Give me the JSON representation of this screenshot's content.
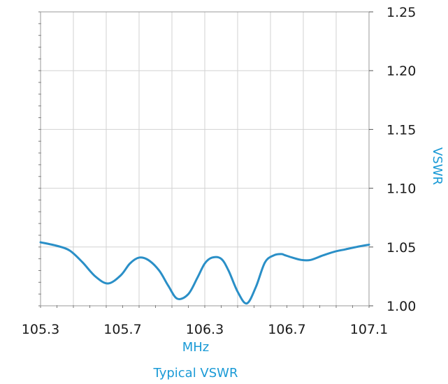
{
  "chart_data": {
    "type": "line",
    "title": "Typical VSWR",
    "xlabel": "MHz",
    "ylabel": "VSWR",
    "xlim": [
      105.3,
      107.1
    ],
    "ylim": [
      1.0,
      1.25
    ],
    "x_ticks": [
      "105.3",
      "105.7",
      "106.3",
      "106.7",
      "107.1"
    ],
    "y_ticks": [
      "1.00",
      "1.05",
      "1.10",
      "1.15",
      "1.20",
      "1.25"
    ],
    "grid": true,
    "y_axis_position": "right",
    "series": [
      {
        "color": "#2a8fc7",
        "x": [
          105.3,
          105.39,
          105.46,
          105.53,
          105.6,
          105.67,
          105.74,
          105.79,
          105.84,
          105.89,
          105.95,
          106.0,
          106.05,
          106.11,
          106.16,
          106.2,
          106.24,
          106.29,
          106.33,
          106.38,
          106.43,
          106.48,
          106.53,
          106.58,
          106.62,
          106.64,
          106.68,
          106.73,
          106.78,
          106.85,
          106.91,
          106.97,
          107.03,
          107.1
        ],
        "y": [
          1.054,
          1.051,
          1.047,
          1.037,
          1.025,
          1.019,
          1.026,
          1.036,
          1.041,
          1.039,
          1.03,
          1.017,
          1.006,
          1.01,
          1.024,
          1.036,
          1.041,
          1.04,
          1.03,
          1.012,
          1.002,
          1.016,
          1.037,
          1.043,
          1.044,
          1.043,
          1.041,
          1.039,
          1.039,
          1.043,
          1.046,
          1.048,
          1.05,
          1.052
        ]
      }
    ]
  }
}
